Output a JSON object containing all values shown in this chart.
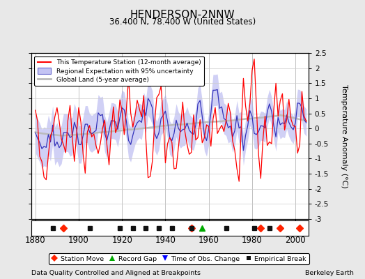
{
  "title": "HENDERSON-2NNW",
  "subtitle": "36.400 N, 78.400 W (United States)",
  "ylabel": "Temperature Anomaly (°C)",
  "xlabel_years": [
    1880,
    1900,
    1920,
    1940,
    1960,
    1980,
    2000
  ],
  "ylim": [
    -3.0,
    2.5
  ],
  "yticks": [
    -3,
    -2.5,
    -2,
    -1.5,
    -1,
    -0.5,
    0,
    0.5,
    1,
    1.5,
    2,
    2.5
  ],
  "xlim": [
    1878,
    2006
  ],
  "year_start": 1880,
  "year_end": 2005,
  "footer_left": "Data Quality Controlled and Aligned at Breakpoints",
  "footer_right": "Berkeley Earth",
  "legend_items": [
    {
      "label": "This Temperature Station (12-month average)",
      "color": "#FF0000",
      "lw": 1.2
    },
    {
      "label": "Regional Expectation with 95% uncertainty",
      "color": "#4444CC",
      "lw": 1.2
    },
    {
      "label": "Global Land (5-year average)",
      "color": "#AAAAAA",
      "lw": 2.0
    }
  ],
  "marker_legend": [
    {
      "label": "Station Move",
      "marker": "D",
      "color": "#FF0000"
    },
    {
      "label": "Record Gap",
      "marker": "^",
      "color": "#00AA00"
    },
    {
      "label": "Time of Obs. Change",
      "marker": "v",
      "color": "#0000FF"
    },
    {
      "label": "Empirical Break",
      "marker": "s",
      "color": "#000000"
    }
  ],
  "station_moves": [
    1893,
    1952,
    1984,
    1993,
    2002
  ],
  "record_gaps": [
    1957
  ],
  "time_obs_changes": [],
  "empirical_breaks": [
    1888,
    1905,
    1919,
    1925,
    1931,
    1937,
    1943,
    1952,
    1968,
    1981,
    1988
  ],
  "bg_color": "#E8E8E8",
  "plot_bg_color": "#FFFFFF",
  "grid_color": "#CCCCCC",
  "grid_color_x": "#AAAAAA",
  "seed": 42
}
